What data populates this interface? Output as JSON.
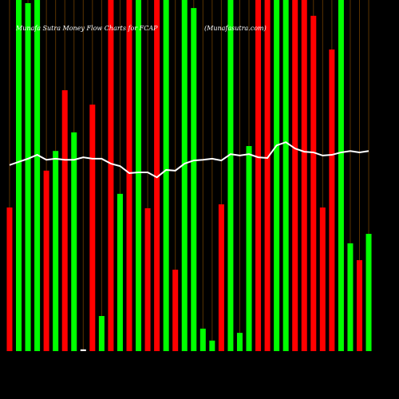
{
  "chart_data": {
    "type": "bar",
    "title": "Munafa Sutra  Money Flow  Charts for FCAP",
    "subtitle": "(Munafasutra.com)",
    "categories": [
      null,
      null,
      null,
      null,
      null,
      null,
      null,
      null,
      null,
      null,
      null,
      null,
      null,
      null,
      null,
      null,
      null,
      null,
      null,
      null,
      null,
      null,
      null,
      null,
      null,
      null,
      null,
      null,
      null,
      null,
      null,
      null,
      null,
      null,
      null,
      null,
      null,
      null,
      null,
      null
    ],
    "values": [
      40.9,
      100,
      99.1,
      100,
      51.4,
      57.0,
      74.3,
      62.3,
      0.5,
      70.2,
      10.0,
      100,
      44.8,
      100,
      100,
      40.7,
      100,
      100,
      23.2,
      100,
      97.7,
      6.4,
      3.0,
      41.8,
      100,
      5.2,
      58.4,
      100,
      100,
      100,
      100,
      100,
      100,
      95.5,
      40.9,
      85.9,
      100,
      30.7,
      25.9,
      33.4
    ],
    "colors": [
      "#ff0000",
      "#00ff00",
      "#00ff00",
      "#00ff00",
      "#ff0000",
      "#00ff00",
      "#ff0000",
      "#00ff00",
      "#ffffff",
      "#ff0000",
      "#00ff00",
      "#ff0000",
      "#00ff00",
      "#ff0000",
      "#00ff00",
      "#ff0000",
      "#ff0000",
      "#00ff00",
      "#ff0000",
      "#00ff00",
      "#00ff00",
      "#00ff00",
      "#00ff00",
      "#ff0000",
      "#00ff00",
      "#00ff00",
      "#00ff00",
      "#ff0000",
      "#ff0000",
      "#00ff00",
      "#00ff00",
      "#ff0000",
      "#ff0000",
      "#ff0000",
      "#ff0000",
      "#ff0000",
      "#00ff00",
      "#00ff00",
      "#ff0000",
      "#00ff00"
    ],
    "line_values": [
      53.0,
      53.9,
      54.8,
      55.9,
      54.5,
      54.8,
      54.5,
      54.5,
      55.2,
      54.8,
      54.8,
      53.4,
      52.7,
      50.7,
      50.9,
      50.9,
      49.5,
      51.6,
      51.4,
      53.4,
      54.3,
      54.5,
      54.8,
      54.3,
      56.1,
      55.7,
      56.1,
      55.2,
      55.0,
      58.6,
      59.5,
      57.7,
      56.8,
      56.6,
      55.7,
      55.9,
      56.6,
      57.0,
      56.6,
      57.0
    ],
    "line_color": "#ffffff",
    "ylim": [
      0,
      100
    ],
    "grid_color": "#5a3300"
  }
}
